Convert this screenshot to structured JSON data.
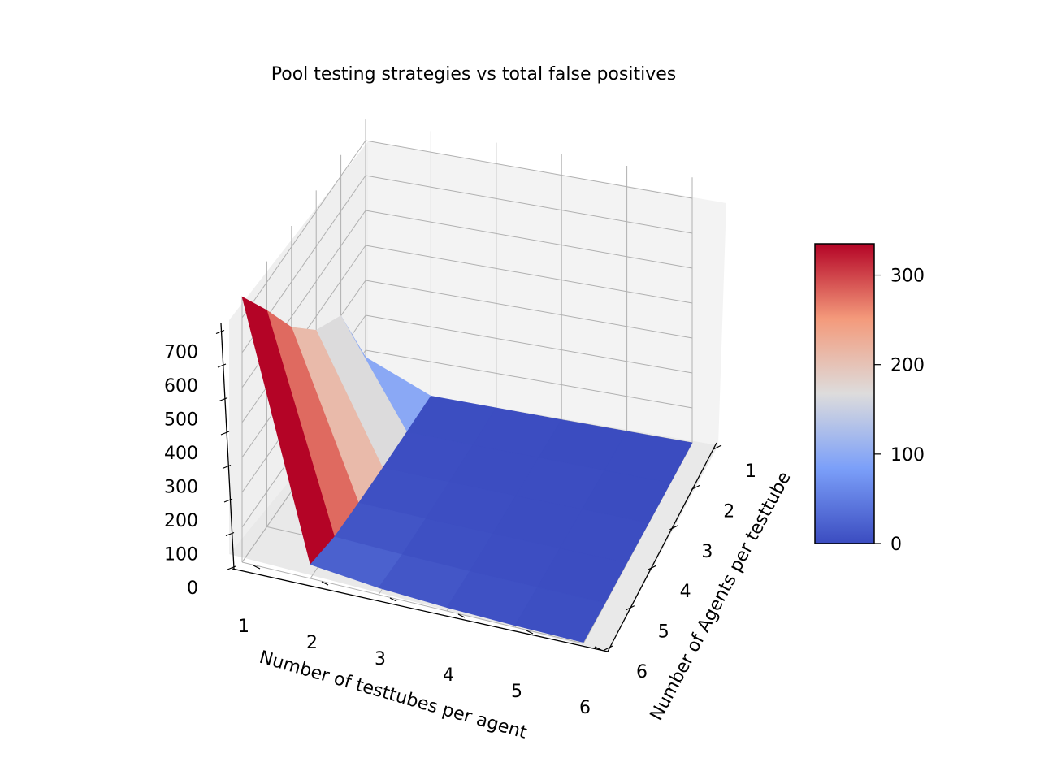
{
  "chart_data": {
    "type": "surface",
    "title": "Pool testing strategies vs total false positives",
    "xlabel": "Number of testtubes per agent",
    "ylabel": "Number of Agents per testtube",
    "zlabel": "",
    "x": [
      1,
      2,
      3,
      4,
      5,
      6
    ],
    "y": [
      1,
      2,
      3,
      4,
      5,
      6
    ],
    "xticks": [
      "1",
      "2",
      "3",
      "4",
      "5",
      "6"
    ],
    "yticks": [
      "1",
      "2",
      "3",
      "4",
      "5",
      "6"
    ],
    "zticks": [
      "0",
      "100",
      "200",
      "300",
      "400",
      "500",
      "600",
      "700"
    ],
    "zlim": [
      0,
      760
    ],
    "z": [
      [
        80,
        30,
        15,
        8,
        5,
        4
      ],
      [
        40,
        15,
        8,
        4,
        3,
        2
      ],
      [
        20,
        8,
        4,
        2,
        1,
        1
      ],
      [
        10,
        4,
        2,
        1,
        1,
        0
      ],
      [
        5,
        2,
        1,
        1,
        0,
        0
      ],
      [
        3,
        1,
        1,
        0,
        0,
        0
      ]
    ],
    "z_x1": [
      [
        760,
        620,
        470,
        360,
        300,
        80
      ]
    ],
    "colorbar": {
      "cmap": "coolwarm",
      "range": [
        0,
        335
      ],
      "ticks": [
        "0",
        "100",
        "200",
        "300"
      ]
    },
    "grid": true
  }
}
